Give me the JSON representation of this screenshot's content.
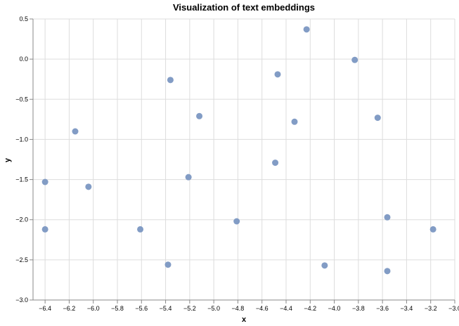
{
  "chart_data": {
    "type": "scatter",
    "title": "Visualization of text embeddings",
    "xlabel": "x",
    "ylabel": "y",
    "xlim": [
      -6.5,
      -3.0
    ],
    "ylim": [
      -3.0,
      0.5
    ],
    "xticks": [
      -6.4,
      -6.2,
      -6.0,
      -5.8,
      -5.6,
      -5.4,
      -5.2,
      -5.0,
      -4.8,
      -4.6,
      -4.4,
      -4.2,
      -4.0,
      -3.8,
      -3.6,
      -3.4,
      -3.2,
      -3.0
    ],
    "xtick_labels": [
      "−6.4",
      "−6.2",
      "−6.0",
      "−5.8",
      "−5.6",
      "−5.4",
      "−5.2",
      "−5.0",
      "−4.8",
      "−4.6",
      "−4.4",
      "−4.2",
      "−4.0",
      "−3.8",
      "−3.6",
      "−3.4",
      "−3.2",
      "−3.0"
    ],
    "yticks": [
      0.5,
      0.0,
      -0.5,
      -1.0,
      -1.5,
      -2.0,
      -2.5,
      -3.0
    ],
    "ytick_labels": [
      "0.5",
      "0.0",
      "−0.5",
      "−1.0",
      "−1.5",
      "−2.0",
      "−2.5",
      "−3.0"
    ],
    "grid": true,
    "point_color": "#7b97c2",
    "points": [
      {
        "x": -6.4,
        "y": -1.53
      },
      {
        "x": -6.4,
        "y": -2.12
      },
      {
        "x": -6.15,
        "y": -0.9
      },
      {
        "x": -6.04,
        "y": -1.59
      },
      {
        "x": -5.61,
        "y": -2.12
      },
      {
        "x": -5.36,
        "y": -0.26
      },
      {
        "x": -5.38,
        "y": -2.56
      },
      {
        "x": -5.21,
        "y": -1.47
      },
      {
        "x": -5.12,
        "y": -0.71
      },
      {
        "x": -4.81,
        "y": -2.02
      },
      {
        "x": -4.49,
        "y": -1.29
      },
      {
        "x": -4.47,
        "y": -0.19
      },
      {
        "x": -4.33,
        "y": -0.78
      },
      {
        "x": -4.23,
        "y": 0.37
      },
      {
        "x": -4.08,
        "y": -2.57
      },
      {
        "x": -3.83,
        "y": -0.01
      },
      {
        "x": -3.64,
        "y": -0.73
      },
      {
        "x": -3.56,
        "y": -1.97
      },
      {
        "x": -3.56,
        "y": -2.64
      },
      {
        "x": -3.18,
        "y": -2.12
      }
    ]
  }
}
